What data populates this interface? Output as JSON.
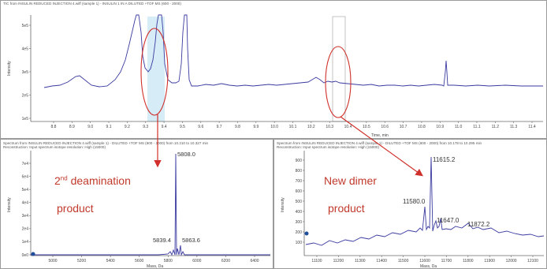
{
  "top_panel": {
    "header": "TIC from INSULIN REDUCED INJECTION 4.wiff (sample 1) - INSULIN 1 IN A DILUTED +TOF MS (600 - 2000)",
    "y_axis_label": "Intensity",
    "x_axis_label": "Time, min",
    "y_ticks": [
      "5e5",
      "4e5",
      "3e5",
      "2e5",
      "1e5"
    ],
    "x_ticks": [
      "8.8",
      "8.9",
      "9.0",
      "9.1",
      "9.2",
      "9.3",
      "9.4",
      "9.5",
      "9.6",
      "9.7",
      "9.8",
      "9.9",
      "10.0",
      "10.1",
      "10.2",
      "10.3",
      "10.4",
      "10.5",
      "10.6",
      "10.7",
      "10.8",
      "10.9",
      "11.0",
      "11.1",
      "11.2",
      "11.3",
      "11.4"
    ]
  },
  "left_panel": {
    "header_line1": "Spectrum from INSULIN REDUCED INJECTION 4.wiff (sample 1) - DILUTED +TOF MS (600 - 2000) from 10.210 to 10.327 min",
    "header_line2": "Reconstruction: Input spectrum isotope resolution: High (15000)",
    "y_axis_label": "Intensity",
    "x_axis_label": "Mass, Da",
    "y_ticks": [
      "7e4",
      "6e4",
      "5e4",
      "4e4",
      "3e4",
      "2e4",
      "1e4",
      "0e0"
    ],
    "x_ticks": [
      "5000",
      "5200",
      "5400",
      "5600",
      "5800",
      "6000",
      "6200",
      "6400"
    ],
    "peak_labels": [
      "5808.0",
      "5839.4",
      "5863.6"
    ],
    "annotation_line1": "2",
    "annotation_sup": "nd",
    "annotation_line1_rest": " deamination",
    "annotation_line2": "product"
  },
  "right_panel": {
    "header_line1": "Spectrum from INSULIN REDUCED INJECTION 4.wiff (sample 1) - DILUTED +TOF MS (600 - 2000) from 10.178 to 10.295 min",
    "header_line2": "Reconstruction: Input spectrum isotope resolution: High (15000)",
    "y_axis_label": "Intensity",
    "x_axis_label": "Mass, Da",
    "y_ticks": [
      "900",
      "800",
      "700",
      "600",
      "500",
      "400",
      "300",
      "200",
      "100"
    ],
    "x_ticks": [
      "11100",
      "11200",
      "11300",
      "11400",
      "11500",
      "11600",
      "11700",
      "11800",
      "11900",
      "12000",
      "12100"
    ],
    "peak_labels": [
      "11615.2",
      "11580.0",
      "11647.0",
      "11872.2"
    ],
    "annotation_line1": "New dimer",
    "annotation_line2": "product"
  },
  "colors": {
    "trace": "#3a3aa0",
    "highlight": "#cfe9f6",
    "annotation": "#c0392b",
    "marker": "#1f4e9a"
  }
}
